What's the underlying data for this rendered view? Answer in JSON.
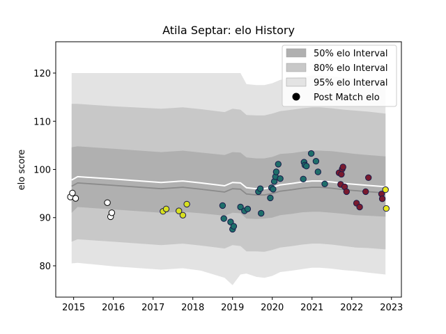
{
  "chart_data": {
    "type": "scatter",
    "title": "Atila Septar: elo History",
    "xlabel": "",
    "ylabel": "elo score",
    "xlim": [
      2014.55,
      2023.25
    ],
    "ylim": [
      73.5,
      126.5
    ],
    "x_ticks": [
      2015,
      2016,
      2017,
      2018,
      2019,
      2020,
      2021,
      2022,
      2023
    ],
    "y_ticks": [
      80,
      90,
      100,
      110,
      120
    ],
    "legend_position": "top-right",
    "legend": [
      {
        "label": "50% elo Interval",
        "kind": "band",
        "color": "#b0b0b0"
      },
      {
        "label": "80% elo Interval",
        "kind": "band",
        "color": "#c8c8c8"
      },
      {
        "label": "95% elo Interval",
        "kind": "band",
        "color": "#e3e3e3"
      },
      {
        "label": "Post Match elo",
        "kind": "marker",
        "color": "#000000"
      }
    ],
    "bands": {
      "x": [
        2014.95,
        2015.1,
        2016.0,
        2017.2,
        2017.75,
        2018.2,
        2018.8,
        2019.0,
        2019.2,
        2019.35,
        2019.6,
        2019.8,
        2020.0,
        2020.2,
        2020.5,
        2020.75,
        2021.0,
        2021.2,
        2021.5,
        2021.8,
        2022.1,
        2022.4,
        2022.85
      ],
      "mean": [
        97.8,
        98.5,
        98.0,
        97.3,
        97.6,
        97.2,
        96.6,
        97.3,
        97.2,
        96.2,
        96.0,
        96.0,
        96.3,
        96.8,
        97.1,
        97.4,
        97.6,
        97.6,
        97.4,
        97.1,
        96.9,
        96.7,
        96.4
      ],
      "p50_lo": [
        91.0,
        92.2,
        91.7,
        91.0,
        91.2,
        90.9,
        90.4,
        91.0,
        90.9,
        89.8,
        89.7,
        89.8,
        90.0,
        90.5,
        90.8,
        91.1,
        91.2,
        91.2,
        91.0,
        90.8,
        90.5,
        90.4,
        90.2
      ],
      "p50_hi": [
        104.6,
        104.8,
        104.3,
        103.6,
        103.9,
        103.5,
        103.0,
        103.6,
        103.5,
        102.5,
        102.3,
        102.3,
        102.6,
        103.2,
        103.4,
        103.7,
        103.9,
        103.9,
        103.8,
        103.5,
        103.2,
        103.0,
        102.7
      ],
      "p80_lo": [
        85.0,
        85.5,
        85.0,
        84.3,
        84.6,
        84.2,
        83.6,
        84.3,
        84.1,
        83.0,
        83.0,
        82.9,
        83.3,
        83.8,
        84.1,
        84.4,
        84.6,
        84.6,
        84.4,
        84.1,
        83.8,
        83.7,
        83.4
      ],
      "p80_hi": [
        113.6,
        113.6,
        113.1,
        112.6,
        112.9,
        112.5,
        111.9,
        112.6,
        112.4,
        111.3,
        111.2,
        111.2,
        111.6,
        112.1,
        112.4,
        112.7,
        112.9,
        112.9,
        112.7,
        112.4,
        112.2,
        112.0,
        111.6
      ],
      "p95_lo": [
        80.5,
        80.6,
        79.9,
        79.2,
        79.5,
        79.0,
        77.5,
        76.0,
        78.2,
        78.4,
        77.7,
        77.5,
        77.9,
        78.7,
        79.0,
        79.3,
        79.6,
        79.6,
        79.4,
        79.1,
        78.9,
        78.6,
        78.2
      ],
      "p95_hi": [
        120.0,
        120.0,
        120.0,
        120.0,
        120.0,
        120.0,
        120.0,
        120.0,
        120.0,
        117.7,
        117.5,
        117.5,
        117.9,
        118.6,
        119.0,
        119.2,
        119.5,
        119.5,
        119.3,
        119.1,
        118.7,
        118.5,
        118.1
      ]
    },
    "series": [
      {
        "color": "#ffffff",
        "points": [
          [
            2014.92,
            94.3
          ],
          [
            2014.97,
            95.1
          ],
          [
            2015.05,
            94.0
          ],
          [
            2015.85,
            93.1
          ],
          [
            2015.93,
            90.2
          ],
          [
            2015.96,
            91.0
          ]
        ]
      },
      {
        "color": "#d8e020",
        "points": [
          [
            2017.25,
            91.3
          ],
          [
            2017.33,
            91.8
          ],
          [
            2017.65,
            91.4
          ],
          [
            2017.75,
            90.5
          ],
          [
            2017.85,
            92.8
          ]
        ]
      },
      {
        "color": "#1e6e6a",
        "points": [
          [
            2018.75,
            92.5
          ],
          [
            2018.78,
            89.8
          ],
          [
            2018.95,
            89.1
          ],
          [
            2019.0,
            87.6
          ],
          [
            2019.03,
            88.2
          ],
          [
            2019.2,
            92.2
          ],
          [
            2019.3,
            91.4
          ],
          [
            2019.38,
            91.8
          ],
          [
            2019.65,
            95.4
          ],
          [
            2019.7,
            96.0
          ],
          [
            2019.72,
            90.9
          ],
          [
            2019.95,
            94.1
          ],
          [
            2019.98,
            96.2
          ],
          [
            2020.02,
            95.9
          ],
          [
            2020.05,
            97.5
          ],
          [
            2020.08,
            98.5
          ],
          [
            2020.1,
            99.5
          ],
          [
            2020.15,
            101.1
          ],
          [
            2020.2,
            98.1
          ],
          [
            2020.78,
            98.0
          ],
          [
            2020.8,
            101.5
          ],
          [
            2020.82,
            100.9
          ],
          [
            2020.86,
            100.7
          ],
          [
            2020.98,
            103.3
          ],
          [
            2021.1,
            101.7
          ],
          [
            2021.15,
            99.5
          ],
          [
            2021.32,
            97.0
          ]
        ]
      },
      {
        "color": "#7a1a2e",
        "points": [
          [
            2021.68,
            99.3
          ],
          [
            2021.72,
            96.9
          ],
          [
            2021.74,
            99.0
          ],
          [
            2021.76,
            100.1
          ],
          [
            2021.78,
            100.5
          ],
          [
            2021.82,
            96.4
          ],
          [
            2021.87,
            95.4
          ],
          [
            2022.12,
            93.0
          ],
          [
            2022.2,
            92.2
          ],
          [
            2022.35,
            95.4
          ],
          [
            2022.42,
            98.3
          ],
          [
            2022.75,
            94.9
          ],
          [
            2022.77,
            93.9
          ]
        ]
      },
      {
        "color": "#e8e820",
        "points": [
          [
            2022.85,
            95.8
          ],
          [
            2022.87,
            91.9
          ]
        ]
      }
    ]
  }
}
